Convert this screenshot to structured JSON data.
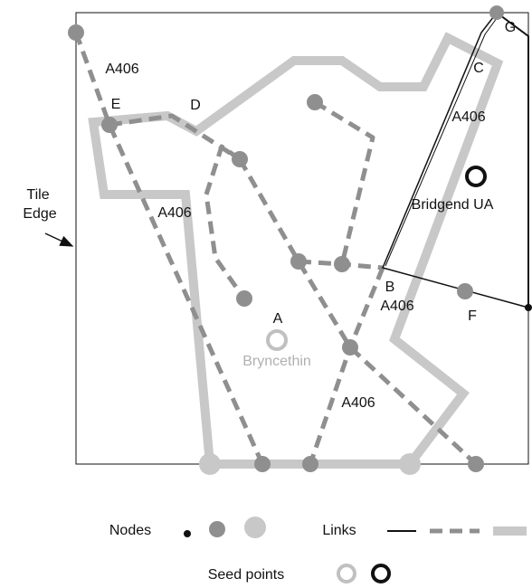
{
  "tile_edge": [
    "Tile",
    "Edge"
  ],
  "road_labels": [
    "A406",
    "A406",
    "A406",
    "A406",
    "A406"
  ],
  "node_labels": [
    "E",
    "D",
    "C",
    "G",
    "B",
    "F",
    "A"
  ],
  "seed_labels": [
    "Bryncethin",
    "Bridgend UA"
  ],
  "legend": {
    "nodes": "Nodes",
    "links": "Links",
    "seed_points": "Seed points"
  }
}
